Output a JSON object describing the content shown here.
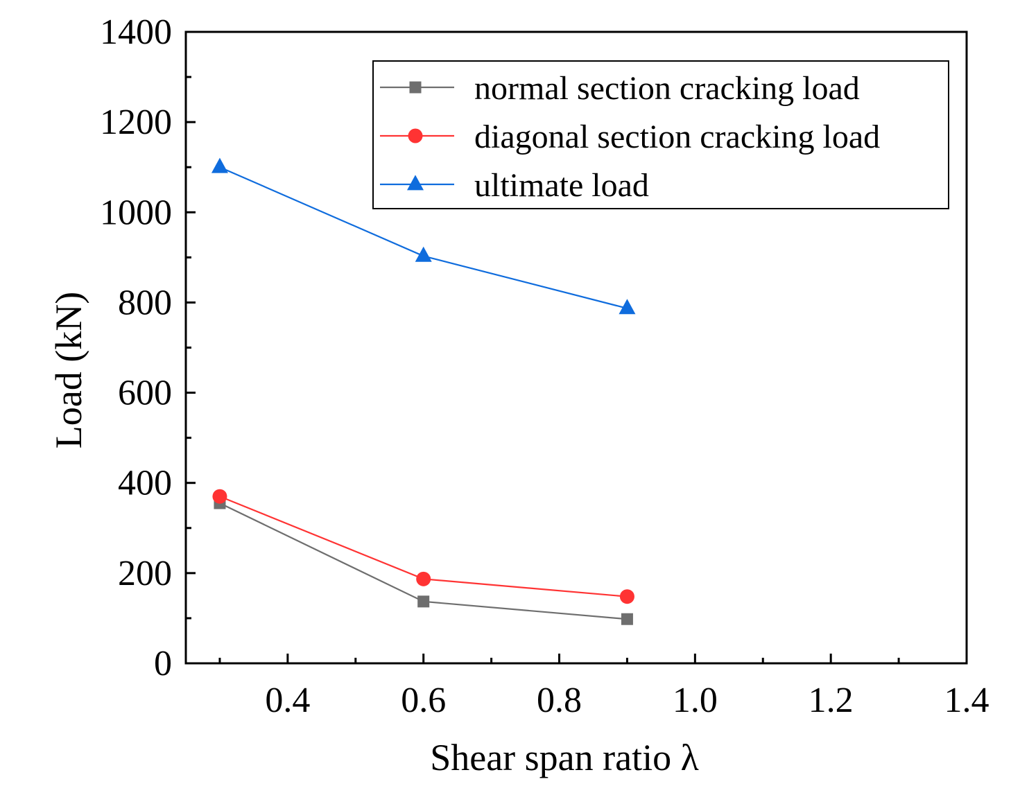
{
  "chart_data": {
    "type": "line",
    "title": "",
    "xlabel": "Shear span ratio λ",
    "ylabel": "Load (kN)",
    "xlim": [
      0.25,
      1.4
    ],
    "ylim": [
      0,
      1400
    ],
    "x_ticks": [
      0.4,
      0.6,
      0.8,
      1.0,
      1.2,
      1.4
    ],
    "x_tick_labels": [
      "0.4",
      "0.6",
      "0.8",
      "1.0",
      "1.2",
      "1.4"
    ],
    "y_ticks": [
      0,
      200,
      400,
      600,
      800,
      1000,
      1200,
      1400
    ],
    "y_tick_labels": [
      "0",
      "200",
      "400",
      "600",
      "800",
      "1000",
      "1200",
      "1400"
    ],
    "grid": false,
    "legend_position": "top-right",
    "x": [
      0.3,
      0.6,
      0.9
    ],
    "series": [
      {
        "name": "normal section cracking load",
        "values": [
          355,
          137,
          98
        ],
        "color": "#6e6e6e",
        "marker": "square"
      },
      {
        "name": "diagonal section cracking load",
        "values": [
          370,
          187,
          148
        ],
        "color": "#ff3333",
        "marker": "circle"
      },
      {
        "name": "ultimate load",
        "values": [
          1100,
          903,
          787
        ],
        "color": "#0f6cdd",
        "marker": "triangle"
      }
    ]
  }
}
